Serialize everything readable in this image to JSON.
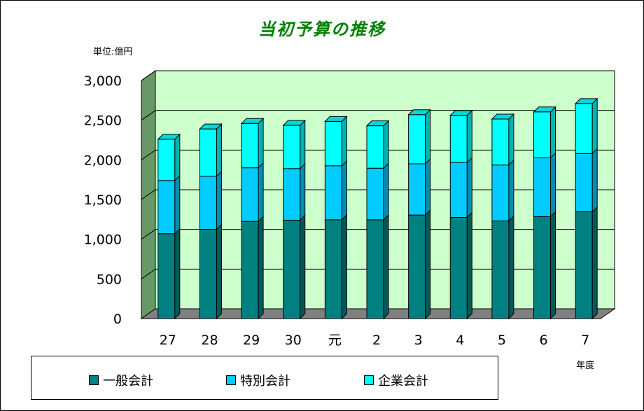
{
  "colors": {
    "plot_bg": "#ccffcc",
    "side_wall": "#669966",
    "floor": "#808080",
    "general": "#008080",
    "special": "#00ccff",
    "enterprise": "#00ffff"
  },
  "chart_data": {
    "type": "bar",
    "stacked": true,
    "three_d": true,
    "title": "当初予算の推移",
    "unit_label": "単位:億円",
    "xlabel": "年度",
    "ylabel": "",
    "ylim": [
      0,
      3000
    ],
    "yticks": [
      0,
      500,
      1000,
      1500,
      2000,
      2500,
      3000
    ],
    "ytick_labels": [
      "0",
      "500",
      "1,000",
      "1,500",
      "2,000",
      "2,500",
      "3,000"
    ],
    "grid": true,
    "legend_position": "bottom",
    "categories": [
      "27",
      "28",
      "29",
      "30",
      "元",
      "2",
      "3",
      "4",
      "5",
      "6",
      "7"
    ],
    "series": [
      {
        "name": "一般会計",
        "color": "#008080",
        "values": [
          1070,
          1125,
          1225,
          1240,
          1245,
          1245,
          1305,
          1275,
          1230,
          1285,
          1345
        ]
      },
      {
        "name": "特別会計",
        "color": "#00ccff",
        "values": [
          670,
          670,
          675,
          650,
          680,
          650,
          645,
          690,
          705,
          740,
          735
        ]
      },
      {
        "name": "企業会計",
        "color": "#00ffff",
        "values": [
          520,
          595,
          560,
          545,
          560,
          535,
          620,
          595,
          580,
          580,
          630
        ]
      }
    ]
  }
}
